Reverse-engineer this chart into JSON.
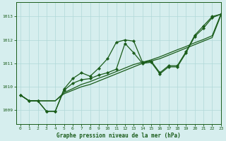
{
  "xlabel": "Graphe pression niveau de la mer (hPa)",
  "xlim": [
    -0.5,
    23
  ],
  "ylim": [
    1008.4,
    1013.6
  ],
  "yticks": [
    1009,
    1010,
    1011,
    1012,
    1013
  ],
  "xticks": [
    0,
    1,
    2,
    3,
    4,
    5,
    6,
    7,
    8,
    9,
    10,
    11,
    12,
    13,
    14,
    15,
    16,
    17,
    18,
    19,
    20,
    21,
    22,
    23
  ],
  "bg_color": "#d6eeee",
  "grid_color": "#b0d8d8",
  "line_color": "#1a5c1a",
  "line1_y": [
    1009.65,
    1009.4,
    1009.4,
    1008.95,
    1008.95,
    1009.9,
    1010.35,
    1010.6,
    1010.45,
    1010.8,
    1011.2,
    1011.9,
    1012.0,
    1011.95,
    1011.05,
    1011.1,
    1010.6,
    1010.9,
    1010.9,
    1011.5,
    1012.2,
    1012.6,
    1013.0,
    1013.1
  ],
  "line2_y": [
    1009.65,
    1009.4,
    1009.4,
    1009.4,
    1009.4,
    1009.7,
    1009.85,
    1010.0,
    1010.1,
    1010.25,
    1010.4,
    1010.55,
    1010.7,
    1010.85,
    1011.0,
    1011.1,
    1011.2,
    1011.35,
    1011.5,
    1011.65,
    1011.8,
    1011.95,
    1012.1,
    1013.05
  ],
  "line3_y": [
    1009.65,
    1009.4,
    1009.4,
    1009.4,
    1009.4,
    1009.75,
    1009.92,
    1010.1,
    1010.22,
    1010.37,
    1010.5,
    1010.65,
    1010.8,
    1010.95,
    1011.05,
    1011.15,
    1011.28,
    1011.43,
    1011.58,
    1011.72,
    1011.88,
    1012.02,
    1012.18,
    1013.1
  ],
  "line4_y": [
    1009.65,
    1009.4,
    1009.4,
    1008.95,
    1008.95,
    1009.85,
    1010.15,
    1010.3,
    1010.35,
    1010.5,
    1010.6,
    1010.75,
    1011.85,
    1011.45,
    1011.0,
    1011.05,
    1010.55,
    1010.85,
    1010.85,
    1011.45,
    1012.15,
    1012.5,
    1012.95,
    1013.1
  ]
}
